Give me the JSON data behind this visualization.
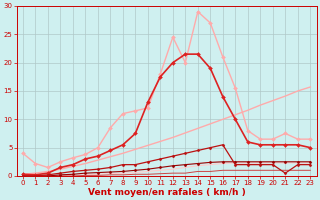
{
  "background_color": "#cff0f0",
  "grid_color": "#b0c8c8",
  "xlabel": "Vent moyen/en rafales ( km/h )",
  "xlim_min": -0.5,
  "xlim_max": 23.5,
  "ylim_min": 0,
  "ylim_max": 30,
  "xticks": [
    0,
    1,
    2,
    3,
    4,
    5,
    6,
    7,
    8,
    9,
    10,
    11,
    12,
    13,
    14,
    15,
    16,
    17,
    18,
    19,
    20,
    21,
    22,
    23
  ],
  "yticks": [
    0,
    5,
    10,
    15,
    20,
    25,
    30
  ],
  "tick_fontsize": 5.0,
  "xlabel_fontsize": 6.5,
  "xlabel_color": "#cc0000",
  "tick_color": "#cc0000",
  "axis_color": "#cc0000",
  "series": [
    {
      "x": [
        0,
        1,
        2,
        3,
        4,
        5,
        6,
        7,
        8,
        9,
        10,
        11,
        12,
        13,
        14,
        15,
        16,
        17,
        18,
        19,
        20,
        21,
        22,
        23
      ],
      "y": [
        0.3,
        0.5,
        0.8,
        1.2,
        1.7,
        2.2,
        2.8,
        3.4,
        4.0,
        4.7,
        5.4,
        6.1,
        6.8,
        7.6,
        8.4,
        9.2,
        10.0,
        10.8,
        11.6,
        12.5,
        13.3,
        14.1,
        15.0,
        15.7
      ],
      "color": "#ffaaaa",
      "lw": 1.0,
      "marker": null,
      "ms": 0,
      "zorder": 2
    },
    {
      "x": [
        0,
        1,
        2,
        3,
        4,
        5,
        6,
        7,
        8,
        9,
        10,
        11,
        12,
        13,
        14,
        15,
        16,
        17,
        18,
        19,
        20,
        21,
        22,
        23
      ],
      "y": [
        4.0,
        2.2,
        1.5,
        2.5,
        3.2,
        3.8,
        5.0,
        8.5,
        11.0,
        11.5,
        12.0,
        18.0,
        24.5,
        20.0,
        29.0,
        27.0,
        21.0,
        15.5,
        8.0,
        6.5,
        6.5,
        7.5,
        6.5,
        6.5
      ],
      "color": "#ffaaaa",
      "lw": 1.0,
      "marker": "D",
      "ms": 2.0,
      "zorder": 3
    },
    {
      "x": [
        0,
        1,
        2,
        3,
        4,
        5,
        6,
        7,
        8,
        9,
        10,
        11,
        12,
        13,
        14,
        15,
        16,
        17,
        18,
        19,
        20,
        21,
        22,
        23
      ],
      "y": [
        0.3,
        0.2,
        0.5,
        1.5,
        2.0,
        3.0,
        3.5,
        4.5,
        5.5,
        7.5,
        13.0,
        17.5,
        20.0,
        21.5,
        21.5,
        19.0,
        14.0,
        10.0,
        6.0,
        5.5,
        5.5,
        5.5,
        5.5,
        5.0
      ],
      "color": "#dd2222",
      "lw": 1.2,
      "marker": "D",
      "ms": 2.0,
      "zorder": 4
    },
    {
      "x": [
        0,
        1,
        2,
        3,
        4,
        5,
        6,
        7,
        8,
        9,
        10,
        11,
        12,
        13,
        14,
        15,
        16,
        17,
        18,
        19,
        20,
        21,
        22,
        23
      ],
      "y": [
        0.0,
        0.0,
        0.2,
        0.5,
        0.8,
        1.0,
        1.2,
        1.5,
        2.0,
        2.0,
        2.5,
        3.0,
        3.5,
        4.0,
        4.5,
        5.0,
        5.5,
        2.0,
        2.0,
        2.0,
        2.0,
        0.5,
        2.0,
        2.0
      ],
      "color": "#bb1111",
      "lw": 0.9,
      "marker": "D",
      "ms": 1.5,
      "zorder": 4
    },
    {
      "x": [
        0,
        1,
        2,
        3,
        4,
        5,
        6,
        7,
        8,
        9,
        10,
        11,
        12,
        13,
        14,
        15,
        16,
        17,
        18,
        19,
        20,
        21,
        22,
        23
      ],
      "y": [
        0.0,
        0.0,
        0.0,
        0.2,
        0.3,
        0.5,
        0.6,
        0.7,
        0.8,
        1.0,
        1.2,
        1.5,
        1.8,
        2.0,
        2.2,
        2.4,
        2.5,
        2.5,
        2.5,
        2.5,
        2.5,
        2.5,
        2.5,
        2.5
      ],
      "color": "#990000",
      "lw": 0.8,
      "marker": "D",
      "ms": 1.5,
      "zorder": 3
    },
    {
      "x": [
        0,
        1,
        2,
        3,
        4,
        5,
        6,
        7,
        8,
        9,
        10,
        11,
        12,
        13,
        14,
        15,
        16,
        17,
        18,
        19,
        20,
        21,
        22,
        23
      ],
      "y": [
        0.0,
        0.0,
        0.0,
        0.0,
        0.1,
        0.2,
        0.3,
        0.4,
        0.5,
        0.6,
        0.8,
        1.0,
        1.2,
        1.5,
        1.8,
        2.0,
        2.2,
        2.3,
        2.3,
        2.3,
        2.3,
        2.3,
        2.3,
        2.3
      ],
      "color": "#ffcccc",
      "lw": 0.8,
      "marker": null,
      "ms": 0,
      "zorder": 2
    },
    {
      "x": [
        0,
        1,
        2,
        3,
        4,
        5,
        6,
        7,
        8,
        9,
        10,
        11,
        12,
        13,
        14,
        15,
        16,
        17,
        18,
        19,
        20,
        21,
        22,
        23
      ],
      "y": [
        0.0,
        0.0,
        0.0,
        0.0,
        0.0,
        0.1,
        0.1,
        0.2,
        0.2,
        0.3,
        0.3,
        0.4,
        0.5,
        0.5,
        0.8,
        0.8,
        1.0,
        1.0,
        1.0,
        1.0,
        1.0,
        1.0,
        1.0,
        1.0
      ],
      "color": "#cc4444",
      "lw": 0.7,
      "marker": null,
      "ms": 0,
      "zorder": 2
    }
  ]
}
